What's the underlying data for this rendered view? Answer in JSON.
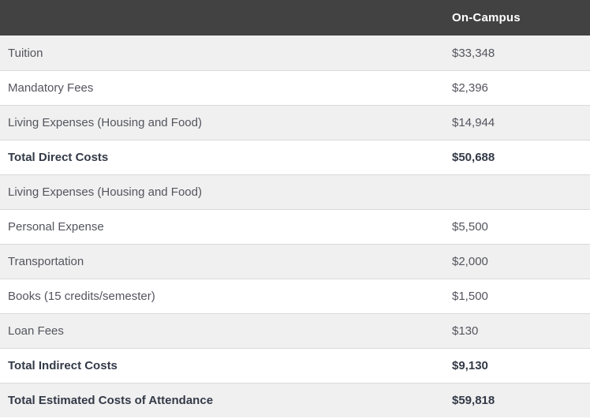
{
  "table": {
    "header": {
      "label_column": "",
      "value_column": "On-Campus"
    },
    "rows": [
      {
        "label": "Tuition",
        "value": "$33,348",
        "bold": false
      },
      {
        "label": "Mandatory Fees",
        "value": "$2,396",
        "bold": false
      },
      {
        "label": "Living Expenses (Housing and Food)",
        "value": "$14,944",
        "bold": false
      },
      {
        "label": "Total Direct Costs",
        "value": "$50,688",
        "bold": true
      },
      {
        "label": "Living Expenses (Housing and Food)",
        "value": "",
        "bold": false
      },
      {
        "label": "Personal Expense",
        "value": "$5,500",
        "bold": false
      },
      {
        "label": "Transportation",
        "value": "$2,000",
        "bold": false
      },
      {
        "label": "Books (15 credits/semester)",
        "value": "$1,500",
        "bold": false
      },
      {
        "label": "Loan Fees",
        "value": "$130",
        "bold": false
      },
      {
        "label": "Total Indirect Costs",
        "value": "$9,130",
        "bold": true
      },
      {
        "label": "Total Estimated Costs of Attendance",
        "value": "$59,818",
        "bold": true
      }
    ],
    "colors": {
      "header_bg": "#424242",
      "header_text": "#ffffff",
      "stripe_bg": "#f0f0f0",
      "row_bg": "#ffffff",
      "border": "#d9d9d9",
      "text": "#54555e",
      "bold_text": "#333a47"
    }
  }
}
